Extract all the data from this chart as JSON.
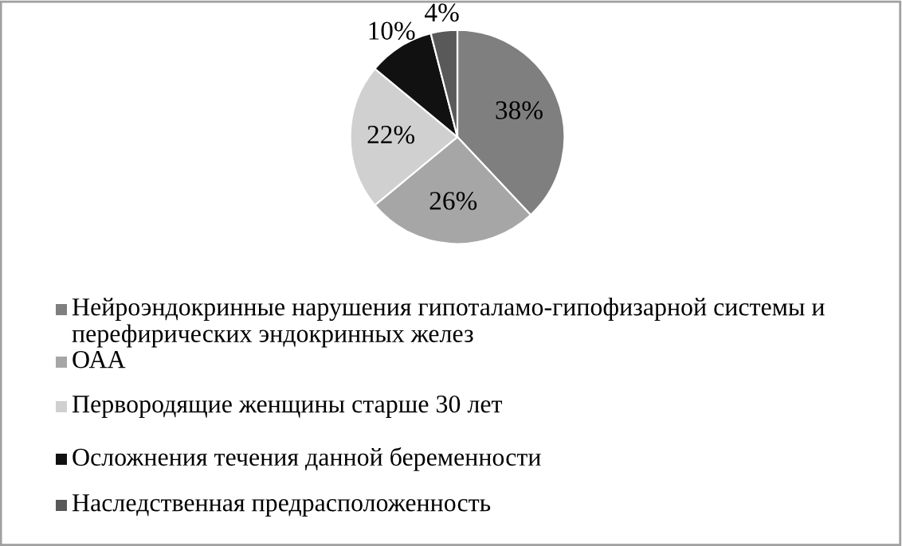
{
  "chart_data": {
    "type": "pie",
    "categories": [
      "Нейроэндокринные нарушения гипоталамо-гипофизарной системы и перефирических эндокринных желез",
      "ОАА",
      "Первородящие женщины старше 30 лет",
      "Осложнения течения данной беременности",
      "Наследственная предрасположенность"
    ],
    "values": [
      38,
      26,
      22,
      10,
      4
    ],
    "colors": [
      "#7f7f7f",
      "#a6a6a6",
      "#d0d0d0",
      "#111111",
      "#595959"
    ],
    "value_labels": [
      "38%",
      "26%",
      "22%",
      "10%",
      "4%"
    ],
    "legend": "bottom"
  }
}
